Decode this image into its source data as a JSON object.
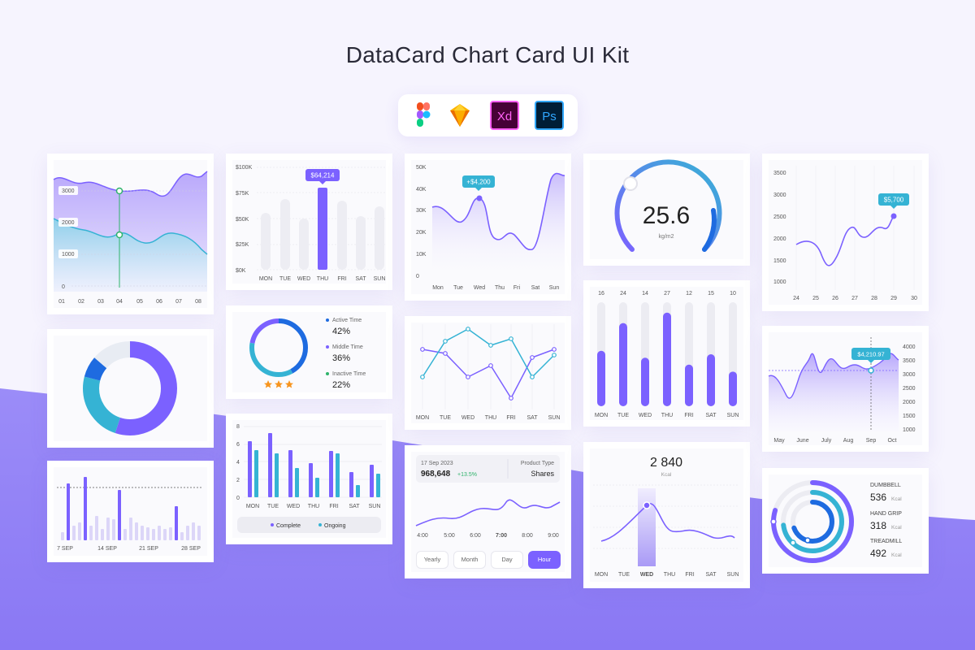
{
  "title": "DataCard Chart Card UI Kit",
  "tools": [
    {
      "icon": "figma-icon"
    },
    {
      "icon": "sketch-icon"
    },
    {
      "icon": "xd-icon",
      "label": "Xd"
    },
    {
      "icon": "photoshop-icon",
      "label": "Ps"
    }
  ],
  "colors": {
    "purple": "#7b61ff",
    "lightPurple": "#c9bdf9",
    "blue": "#1e6be0",
    "cyan": "#35b3d4",
    "green": "#2fb36b",
    "orange": "#f7941d",
    "grey": "#e9e9f0"
  },
  "area_card": {
    "yticks": [
      "3000",
      "2000",
      "1000",
      "0"
    ],
    "xticks": [
      "01",
      "02",
      "03",
      "04",
      "05",
      "06",
      "07",
      "08"
    ],
    "selected_x": "04"
  },
  "bar_card": {
    "yticks": [
      "$100K",
      "$75K",
      "$50K",
      "$25K",
      "$0K"
    ],
    "days": [
      "MON",
      "TUE",
      "WED",
      "THU",
      "FRI",
      "SAT",
      "SUN"
    ],
    "tooltip": "$64,214",
    "highlight": "THU"
  },
  "line_card": {
    "yticks": [
      "50K",
      "40K",
      "30K",
      "20K",
      "10K",
      "0"
    ],
    "days": [
      "Mon",
      "Tue",
      "Wed",
      "Thu",
      "Fri",
      "Sat",
      "Sun"
    ],
    "tooltip": "+$4,200"
  },
  "gauge_card": {
    "value": "25.6",
    "unit": "kg/m2"
  },
  "curve_card": {
    "yticks": [
      "3500",
      "3000",
      "2500",
      "2000",
      "1500",
      "1000"
    ],
    "xticks": [
      "24",
      "25",
      "26",
      "27",
      "28",
      "29",
      "30"
    ],
    "tooltip": "$5,700"
  },
  "donut_card": {},
  "time_card": {
    "items": [
      {
        "label": "Active Time",
        "value": "42%"
      },
      {
        "label": "Middle Time",
        "value": "36%"
      },
      {
        "label": "Inactive Time",
        "value": "22%"
      }
    ],
    "stars": 3
  },
  "cross_card": {
    "days": [
      "MON",
      "TUE",
      "WED",
      "THU",
      "FRI",
      "SAT",
      "SUN"
    ]
  },
  "progress_card": {
    "values": [
      "16",
      "24",
      "14",
      "27",
      "12",
      "15",
      "10"
    ],
    "days": [
      "MON",
      "TUE",
      "WED",
      "THU",
      "FRI",
      "SAT",
      "SUN"
    ]
  },
  "month_card": {
    "yticks": [
      "4000",
      "3500",
      "3000",
      "2500",
      "2000",
      "1500",
      "1000"
    ],
    "months": [
      "May",
      "June",
      "July",
      "Aug",
      "Sep",
      "Oct"
    ],
    "tooltip": "$4,210.97"
  },
  "sep_card": {
    "xticks": [
      "7 SEP",
      "14 SEP",
      "21 SEP",
      "28 SEP"
    ]
  },
  "pair_card": {
    "yticks": [
      "8",
      "6",
      "4",
      "2",
      "0"
    ],
    "days": [
      "MON",
      "TUE",
      "WED",
      "THU",
      "FRI",
      "SAT",
      "SUN"
    ],
    "legend": [
      "Complete",
      "Ongoing"
    ]
  },
  "shares_card": {
    "date": "17 Sep 2023",
    "value": "968,648",
    "change": "+13.5%",
    "type_label": "Product Type",
    "type_value": "Shares",
    "times": [
      "4:00",
      "5:00",
      "6:00",
      "7:00",
      "8:00",
      "9:00"
    ],
    "buttons": [
      "Yearly",
      "Month",
      "Day",
      "Hour"
    ],
    "active": "Hour"
  },
  "kcal_card": {
    "value": "2 840",
    "unit": "Kcal",
    "days": [
      "MON",
      "TUE",
      "WED",
      "THU",
      "FRI",
      "SAT",
      "SUN"
    ],
    "active": "WED"
  },
  "rings_card": {
    "items": [
      {
        "label": "DUMBBELL",
        "value": "536",
        "unit": "Kcal"
      },
      {
        "label": "HAND GRIP",
        "value": "318",
        "unit": "Kcal"
      },
      {
        "label": "TREADMILL",
        "value": "492",
        "unit": "Kcal"
      }
    ]
  }
}
